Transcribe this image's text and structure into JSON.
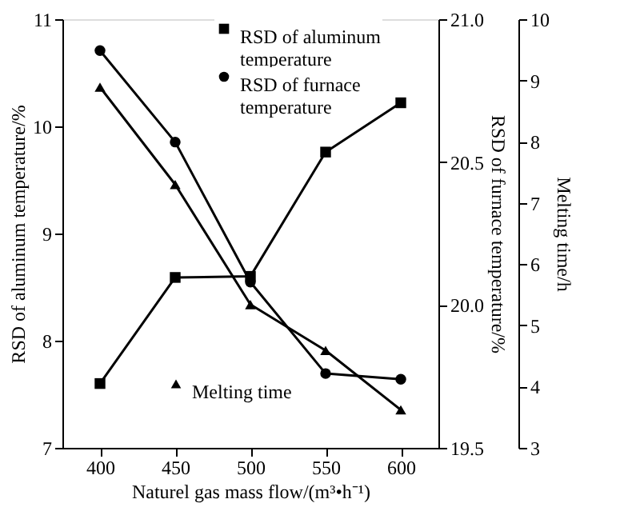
{
  "chart_data": {
    "type": "line",
    "xlabel": "Naturel gas mass flow/(m³•h⁻¹)",
    "ylabel": "RSD of aluminum temperature/%",
    "y2label": "RSD of furnace temperature/%",
    "y3label": "Melting time/h",
    "x": [
      400,
      450,
      500,
      550,
      600
    ],
    "xlim": [
      375,
      625
    ],
    "xticks": [
      400,
      450,
      500,
      550,
      600
    ],
    "ylim": [
      7,
      11
    ],
    "yticks": [
      7,
      8,
      9,
      10,
      11
    ],
    "y2lim": [
      19.5,
      21.0
    ],
    "y2ticks": [
      {
        "value": 19.5,
        "label": "19.5"
      },
      {
        "value": 20,
        "label": "20.0"
      },
      {
        "value": 20.5,
        "label": "20.5"
      },
      {
        "value": 21,
        "label": "21.0"
      }
    ],
    "y3lim": [
      3,
      10
    ],
    "y3ticks": [
      3,
      4,
      5,
      6,
      7,
      8,
      9,
      10
    ],
    "series": [
      {
        "name": "RSD of aluminum temperature",
        "color": "#000000",
        "marker": "square",
        "values": [
          7.6,
          8.59,
          8.6,
          9.76,
          10.22
        ]
      },
      {
        "name": "RSD of furnace temperature",
        "color": "#000000",
        "marker": "circle",
        "axis": "y2",
        "values": [
          20.89,
          20.57,
          20.08,
          19.76,
          19.74
        ]
      },
      {
        "name": "Melting time",
        "color": "#000000",
        "marker": "triangle",
        "axis": "y3",
        "values": [
          8.89,
          7.3,
          5.34,
          4.59,
          3.62
        ]
      }
    ],
    "grid": false,
    "legend": "top right",
    "line_style": "solid"
  }
}
